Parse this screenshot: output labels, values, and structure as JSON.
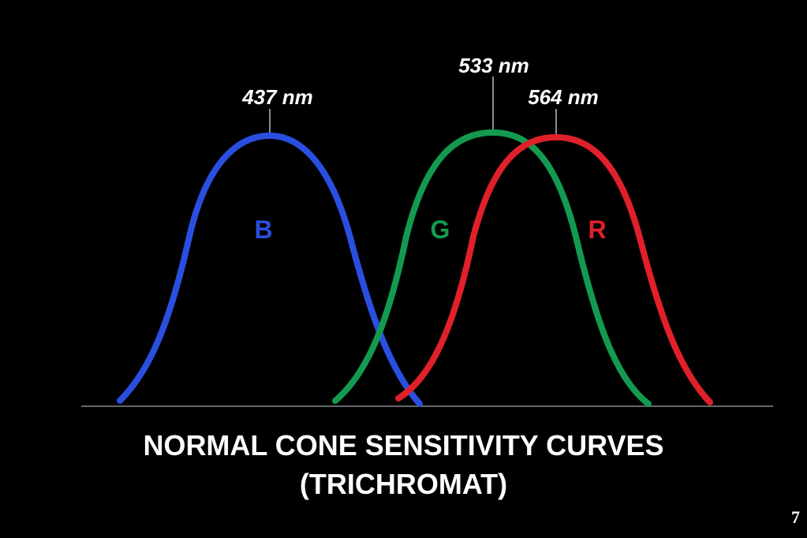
{
  "slide": {
    "title_line1": "NORMAL CONE SENSITIVITY CURVES",
    "title_line2": "(TRICHROMAT)",
    "page_number": "7",
    "background_color": "#000000",
    "text_color": "#ffffff"
  },
  "curves": [
    {
      "id": "blue",
      "letter": "B",
      "peak_label": "437 nm",
      "color": "#2a4fe0"
    },
    {
      "id": "green",
      "letter": "G",
      "peak_label": "533 nm",
      "color": "#149a50"
    },
    {
      "id": "red",
      "letter": "R",
      "peak_label": "564 nm",
      "color": "#e0202a"
    }
  ],
  "baseline_color": "#888888"
}
